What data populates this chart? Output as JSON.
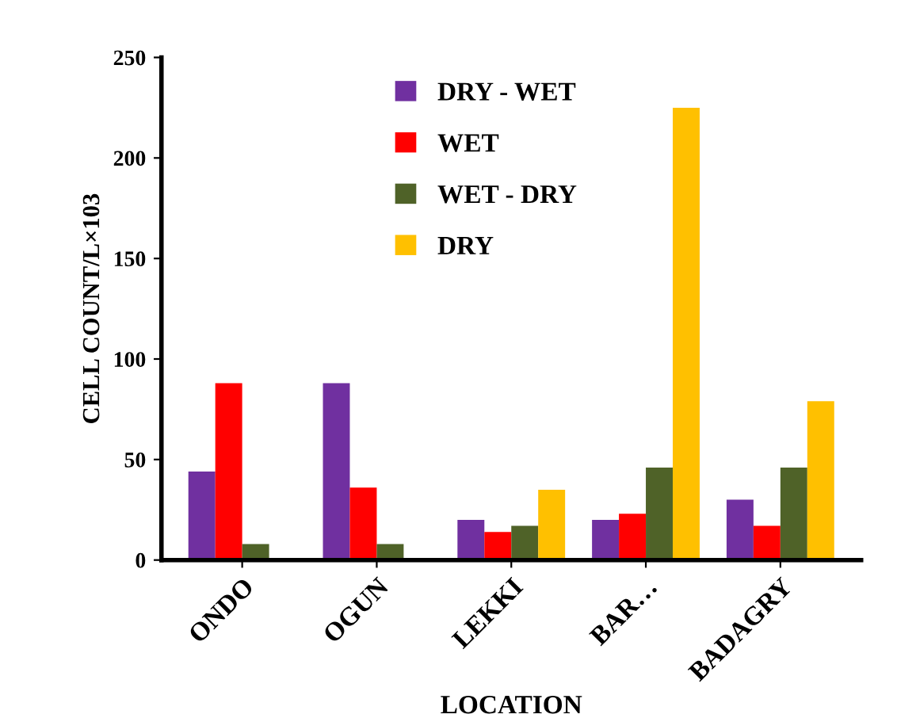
{
  "chart_data": {
    "type": "bar",
    "xlabel": "LOCATION",
    "ylabel": "CELL COUNT/L×103",
    "categories": [
      "ONDO",
      "OGUN",
      "LEKKI",
      "BAR…",
      "BADAGRY"
    ],
    "series": [
      {
        "name": "DRY - WET",
        "color": "#7030a0",
        "values": [
          44,
          88,
          20,
          20,
          30
        ]
      },
      {
        "name": "WET",
        "color": "#ff0000",
        "values": [
          88,
          36,
          14,
          23,
          17
        ]
      },
      {
        "name": "WET - DRY",
        "color": "#4f6228",
        "values": [
          8,
          8,
          17,
          46,
          46
        ]
      },
      {
        "name": "DRY",
        "color": "#ffc000",
        "values": [
          null,
          null,
          35,
          225,
          79
        ]
      }
    ],
    "ylim": [
      0,
      250
    ],
    "yticks": [
      0,
      50,
      100,
      150,
      200,
      250
    ],
    "grid": false,
    "legend": "top"
  }
}
